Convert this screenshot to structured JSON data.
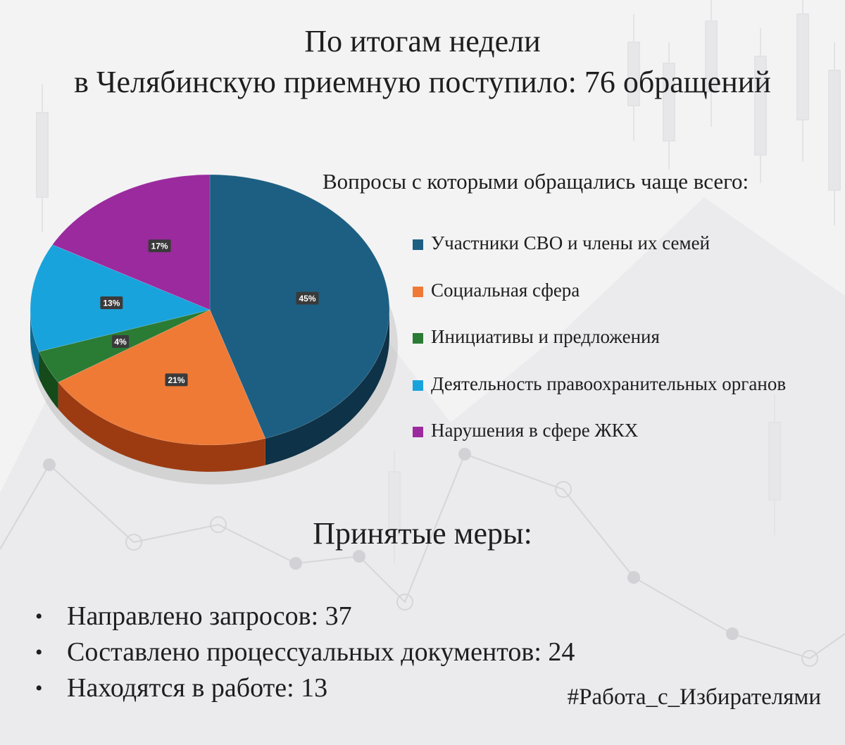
{
  "header": {
    "title_line1": "По итогам недели",
    "title_line2": "в Челябинскую приемную поступило: 76 обращений"
  },
  "chart_section": {
    "subtitle": "Вопросы с которыми обращались чаще всего:"
  },
  "chart_data": {
    "type": "pie",
    "style": "3d",
    "legend_position": "right",
    "categories": [
      "Участники СВО и члены их семей",
      "Социальная сфера",
      "Инициативы и предложения",
      "Деятельность правоохранительных органов",
      "Нарушения в сфере ЖКХ"
    ],
    "values": [
      45,
      21,
      4,
      13,
      17
    ],
    "labels": [
      "45%",
      "21%",
      "4%",
      "13%",
      "17%"
    ],
    "colors": [
      "#1d5f82",
      "#ef7a36",
      "#2a7b34",
      "#19a3dc",
      "#9b2a9e"
    ],
    "dark_colors": [
      "#0e3247",
      "#9c3b12",
      "#154a1b",
      "#0d6a92",
      "#621666"
    ]
  },
  "measures": {
    "title": "Принятые меры:",
    "items": [
      {
        "bullet": "•",
        "text": "Направлено запросов: 37"
      },
      {
        "bullet": "•",
        "text": "Составлено процессуальных документов: 24"
      },
      {
        "bullet": "•",
        "text": "Находятся в работе: 13"
      }
    ]
  },
  "footer": {
    "hashtag": "#Работа_с_Избирателями"
  }
}
